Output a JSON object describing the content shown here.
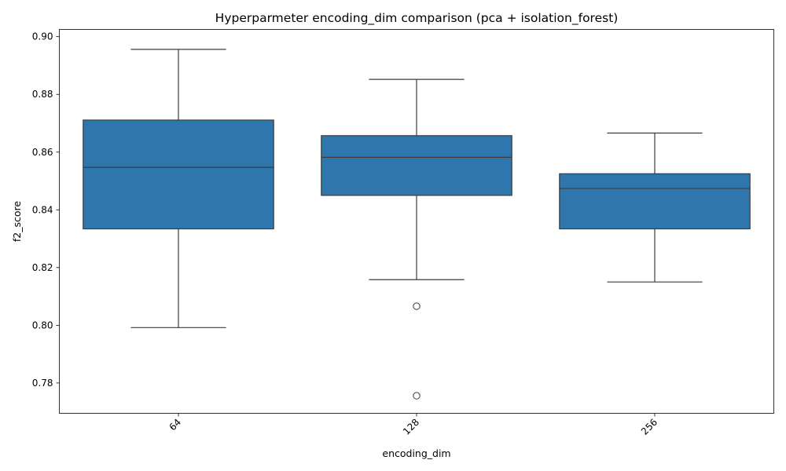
{
  "chart_data": {
    "type": "box",
    "title": "Hyperparmeter encoding_dim comparison (pca + isolation_forest)",
    "xlabel": "encoding_dim",
    "ylabel": "f2_score",
    "categories": [
      "64",
      "128",
      "256"
    ],
    "ylim": [
      0.7695,
      0.9025
    ],
    "yticks": [
      0.78,
      0.8,
      0.82,
      0.84,
      0.86,
      0.88,
      0.9
    ],
    "ytick_labels": [
      "0.78",
      "0.80",
      "0.82",
      "0.84",
      "0.86",
      "0.88",
      "0.90"
    ],
    "x_tick_rotation_deg": 45,
    "grid": false,
    "box_color": "#2e76ab",
    "edge_color": "#3d3d3d",
    "boxes": [
      {
        "category": "64",
        "whisker_low": 0.7992,
        "q1": 0.8334,
        "median": 0.8547,
        "q3": 0.8711,
        "whisker_high": 0.8956,
        "outliers": []
      },
      {
        "category": "128",
        "whisker_low": 0.8158,
        "q1": 0.845,
        "median": 0.8582,
        "q3": 0.8657,
        "whisker_high": 0.8852,
        "outliers": [
          0.8066,
          0.7756
        ]
      },
      {
        "category": "256",
        "whisker_low": 0.815,
        "q1": 0.8334,
        "median": 0.8474,
        "q3": 0.8525,
        "whisker_high": 0.8666,
        "outliers": []
      }
    ]
  }
}
